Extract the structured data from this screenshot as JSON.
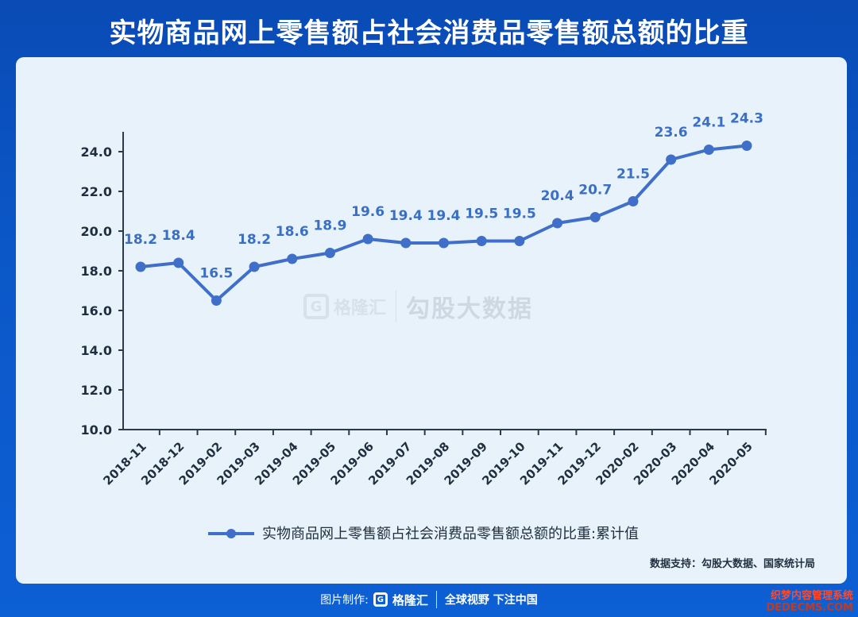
{
  "title": "实物商品网上零售额占社会消费品零售额总额的比重",
  "watermark": {
    "brand": "格隆汇",
    "text": "勾股大数据"
  },
  "source": "数据支持：勾股大数据、国家统计局",
  "footer": {
    "prefix": "图片制作:",
    "brand": "格隆汇",
    "slogan": "全球视野 下注中国"
  },
  "corner": {
    "line1": "织梦内容管理系统",
    "line2": "DEDECMS.COM"
  },
  "colors": {
    "line": "#3f6fc8",
    "axis": "#2a3a4a",
    "label": "#3a6fc4"
  },
  "chart_data": {
    "type": "line",
    "title": "实物商品网上零售额占社会消费品零售额总额的比重",
    "categories": [
      "2018-11",
      "2018-12",
      "2019-02",
      "2019-03",
      "2019-04",
      "2019-05",
      "2019-06",
      "2019-07",
      "2019-08",
      "2019-09",
      "2019-10",
      "2019-11",
      "2019-12",
      "2020-02",
      "2020-03",
      "2020-04",
      "2020-05"
    ],
    "series": [
      {
        "name": "实物商品网上零售额占社会消费品零售额总额的比重:累计值",
        "values": [
          18.2,
          18.4,
          16.5,
          18.2,
          18.6,
          18.9,
          19.6,
          19.4,
          19.4,
          19.5,
          19.5,
          20.4,
          20.7,
          21.5,
          23.6,
          24.1,
          24.3
        ]
      }
    ],
    "y_ticks": [
      "10.0",
      "12.0",
      "14.0",
      "16.0",
      "18.0",
      "20.0",
      "22.0",
      "24.0"
    ],
    "ylim": [
      10,
      25
    ],
    "xlabel": "",
    "ylabel": "",
    "legend": "bottom-center",
    "grid": false
  }
}
